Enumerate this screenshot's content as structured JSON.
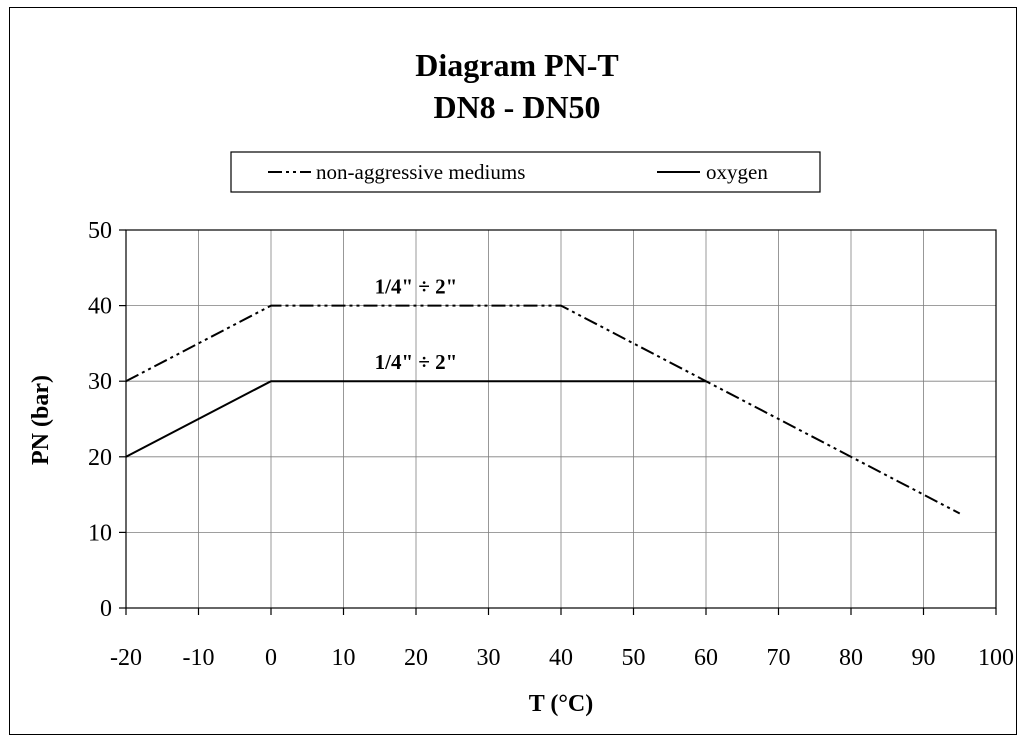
{
  "chart_data": {
    "type": "line",
    "title": "Diagram PN-T",
    "subtitle": "DN8 - DN50",
    "xlabel": "T (°C)",
    "ylabel": "PN (bar)",
    "xlim": [
      -20,
      100
    ],
    "ylim": [
      0,
      50
    ],
    "x_ticks": [
      -20,
      -10,
      0,
      10,
      20,
      30,
      40,
      50,
      60,
      70,
      80,
      90,
      100
    ],
    "y_ticks": [
      0,
      10,
      20,
      30,
      40,
      50
    ],
    "grid": true,
    "legend_position": "top-center",
    "series": [
      {
        "name": "non-aggressive mediums",
        "line_style": "dash-dot-dot",
        "color": "#000000",
        "points": [
          [
            -20,
            30
          ],
          [
            0,
            40
          ],
          [
            40,
            40
          ],
          [
            60,
            30
          ],
          [
            95,
            12.5
          ]
        ]
      },
      {
        "name": "oxygen",
        "line_style": "solid",
        "color": "#000000",
        "points": [
          [
            -20,
            20
          ],
          [
            0,
            30
          ],
          [
            60,
            30
          ]
        ]
      }
    ],
    "annotations": [
      {
        "text": "1/4\" ÷ 2\"",
        "x": 20,
        "y": 40
      },
      {
        "text": "1/4\" ÷ 2\"",
        "x": 20,
        "y": 30
      }
    ]
  }
}
